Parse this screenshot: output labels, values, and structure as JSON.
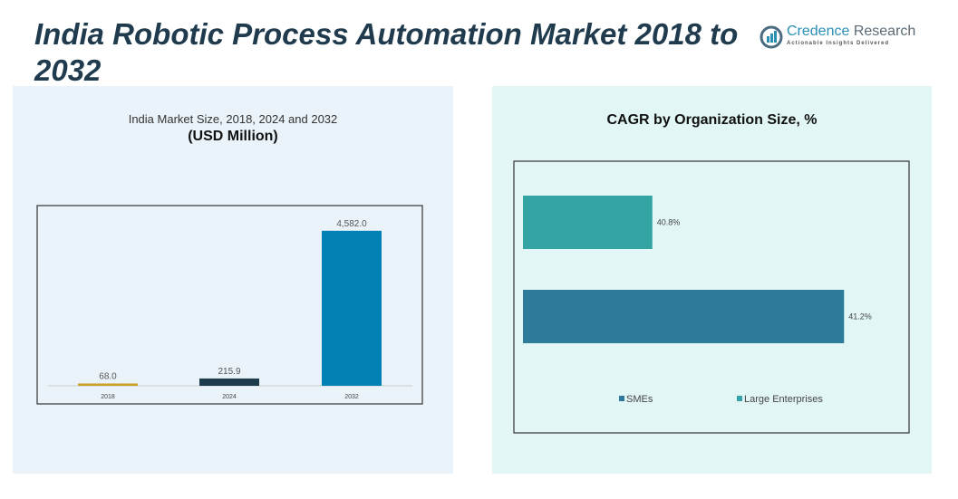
{
  "title": "India Robotic Process Automation Market 2018 to 2032",
  "logo": {
    "name_part1": "Credence",
    "name_part2": " Research",
    "tagline": "Actionable Insights Delivered"
  },
  "colors": {
    "bar2018": "#c9a227",
    "bar2024": "#1e3d4c",
    "bar2032": "#0282b4",
    "smes": "#2e7a9a",
    "large": "#33a3a3"
  },
  "chart_data": [
    {
      "type": "bar",
      "title": "India Market Size, 2018, 2024 and 2032",
      "subtitle": "(USD Million)",
      "categories": [
        "2018",
        "2024",
        "2032"
      ],
      "values": [
        68.0,
        215.9,
        4582.0
      ],
      "labels": [
        "68.0",
        "215.9",
        "4,582.0"
      ],
      "ylim": [
        0,
        5300
      ],
      "grid": false
    },
    {
      "type": "bar",
      "orientation": "horizontal",
      "title": "CAGR by Organization Size, %",
      "series": [
        {
          "name": "Large Enterprises",
          "value": 40.8,
          "label": "40.8%"
        },
        {
          "name": "SMEs",
          "value": 41.2,
          "label": "41.2%"
        }
      ],
      "legend": [
        "SMEs",
        "Large Enterprises"
      ],
      "legend_placement": "bottom",
      "xlim": [
        40.53,
        41.33
      ],
      "grid": false
    }
  ]
}
